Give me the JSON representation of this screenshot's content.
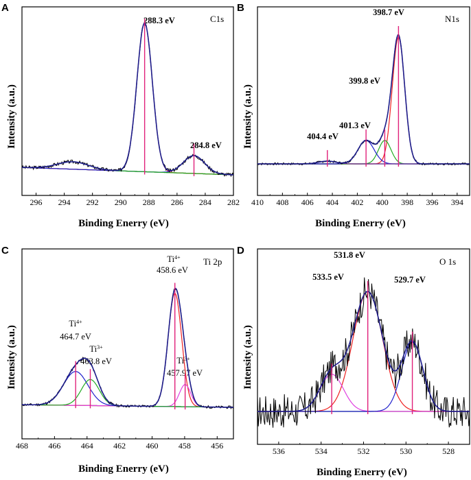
{
  "colors": {
    "raw": "#000000",
    "fit_envelope": "#1e1e8c",
    "background": "#2a7a2a",
    "marker": "#e0207a",
    "c1": "#2020cc",
    "c2": "#ee2020",
    "c3": "#22aa22",
    "c4": "#7030a0",
    "c5": "#e040e0",
    "c6": "#e8a020"
  },
  "chart_data": [
    {
      "panel": "A",
      "type": "line",
      "title": "C1s",
      "xlabel": "Binding Enerry (eV)",
      "ylabel": "Intensity (a.u.)",
      "xlim": [
        297,
        282
      ],
      "ylim": [
        0,
        1.12
      ],
      "xticks": [
        296,
        294,
        292,
        290,
        288,
        286,
        284,
        282
      ],
      "peaks": [
        {
          "label": "288.3 eV",
          "position": 288.3,
          "height": 1.0,
          "width": 0.55,
          "color": "c2"
        },
        {
          "label": "284.8 eV",
          "position": 284.8,
          "height": 0.12,
          "width": 0.75,
          "color": "c1"
        },
        {
          "label": "",
          "position": 293.4,
          "height": 0.05,
          "width": 1.1,
          "color": "c3"
        }
      ],
      "background_line": {
        "start": 0.05,
        "end": 0.0
      },
      "markers": [
        288.3,
        284.8
      ]
    },
    {
      "panel": "B",
      "type": "line",
      "title": "N1s",
      "xlabel": "Binding Enerry (eV)",
      "ylabel": "Intensity (a.u.)",
      "xlim": [
        410,
        393
      ],
      "ylim": [
        0,
        1.12
      ],
      "xticks": [
        410,
        408,
        406,
        404,
        402,
        400,
        398,
        396,
        394
      ],
      "peaks": [
        {
          "label": "398.7 eV",
          "position": 398.7,
          "height": 0.92,
          "width": 0.5,
          "color": "c2"
        },
        {
          "label": "399.8 eV",
          "position": 399.8,
          "height": 0.17,
          "width": 0.5,
          "color": "c3"
        },
        {
          "label": "401.3 eV",
          "position": 401.3,
          "height": 0.17,
          "width": 0.65,
          "color": "c1"
        },
        {
          "label": "404.4 eV",
          "position": 404.4,
          "height": 0.02,
          "width": 0.7,
          "color": "c4"
        }
      ],
      "background_line": {
        "start": 0.0,
        "end": 0.0
      },
      "markers": [
        398.7,
        399.8,
        401.3,
        404.4
      ]
    },
    {
      "panel": "C",
      "type": "line",
      "title": "Ti 2p",
      "xlabel": "Binding Enerry (eV)",
      "ylabel": "Intensity (a.u.)",
      "xlim": [
        468,
        455
      ],
      "ylim": [
        0,
        1.12
      ],
      "xticks": [
        468,
        466,
        464,
        462,
        460,
        458,
        456
      ],
      "peaks": [
        {
          "label_top": "Ti4+",
          "label": "458.6 eV",
          "position": 458.6,
          "height": 0.87,
          "width": 0.42,
          "color": "c2"
        },
        {
          "label_top": "Ti3+",
          "label": "457.97 eV",
          "position": 457.97,
          "height": 0.17,
          "width": 0.35,
          "color": "c5"
        },
        {
          "label_top": "Ti4+",
          "label": "464.7 eV",
          "position": 464.7,
          "height": 0.26,
          "width": 0.75,
          "color": "c1"
        },
        {
          "label_top": "Ti3+",
          "label": "463.8 eV",
          "position": 463.8,
          "height": 0.2,
          "width": 0.55,
          "color": "c3"
        }
      ],
      "background_line": {
        "start": 0.02,
        "end": 0.0
      },
      "markers": [
        458.6,
        457.97,
        464.7,
        463.8
      ]
    },
    {
      "panel": "D",
      "type": "line",
      "title": "O 1s",
      "xlabel": "Binding Enerry (eV)",
      "ylabel": "Intensity (a.u.)",
      "xlim": [
        537,
        527
      ],
      "ylim": [
        0,
        1.12
      ],
      "xticks": [
        536,
        534,
        532,
        530,
        528
      ],
      "peaks": [
        {
          "label": "531.8 eV",
          "position": 531.8,
          "height": 0.9,
          "width": 0.7,
          "color": "c2"
        },
        {
          "label": "533.5 eV",
          "position": 533.5,
          "height": 0.28,
          "width": 0.55,
          "color": "c5"
        },
        {
          "label": "529.7 eV",
          "position": 529.7,
          "height": 0.52,
          "width": 0.5,
          "color": "c1"
        }
      ],
      "background_line": {
        "start": 0.0,
        "end": 0.0
      },
      "markers": [
        531.8,
        533.5,
        529.7
      ]
    }
  ]
}
